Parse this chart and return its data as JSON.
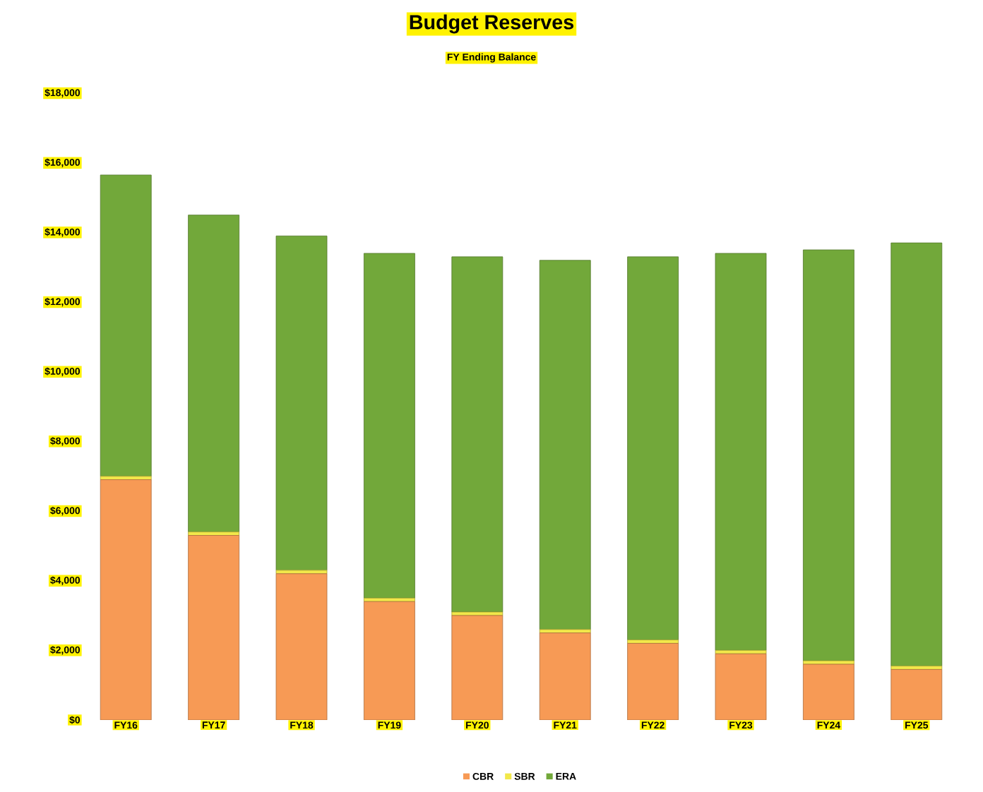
{
  "chart_data": {
    "type": "bar",
    "title": "Budget Reserves",
    "subtitle": "FY Ending Balance",
    "stacked": true,
    "categories": [
      "FY16",
      "FY17",
      "FY18",
      "FY19",
      "FY20",
      "FY21",
      "FY22",
      "FY23",
      "FY24",
      "FY25"
    ],
    "series": [
      {
        "name": "CBR",
        "color": "#f79a55",
        "values": [
          6900,
          5300,
          4200,
          3400,
          3000,
          2500,
          2200,
          1900,
          1600,
          1450
        ]
      },
      {
        "name": "SBR",
        "color": "#f2e84a",
        "values": [
          100,
          100,
          100,
          100,
          100,
          100,
          100,
          100,
          100,
          100
        ]
      },
      {
        "name": "ERA",
        "color": "#72a83a",
        "values": [
          8650,
          9100,
          9600,
          9900,
          10200,
          10600,
          11000,
          11400,
          11800,
          12150
        ]
      }
    ],
    "ylim": [
      0,
      18000
    ],
    "yticks": [
      {
        "value": 0,
        "label": "$0"
      },
      {
        "value": 2000,
        "label": "$2,000"
      },
      {
        "value": 4000,
        "label": "$4,000"
      },
      {
        "value": 6000,
        "label": "$6,000"
      },
      {
        "value": 8000,
        "label": "$8,000"
      },
      {
        "value": 10000,
        "label": "$10,000"
      },
      {
        "value": 12000,
        "label": "$12,000"
      },
      {
        "value": 14000,
        "label": "$14,000"
      },
      {
        "value": 16000,
        "label": "$16,000"
      },
      {
        "value": 18000,
        "label": "$18,000"
      }
    ],
    "legend": "bottom"
  }
}
